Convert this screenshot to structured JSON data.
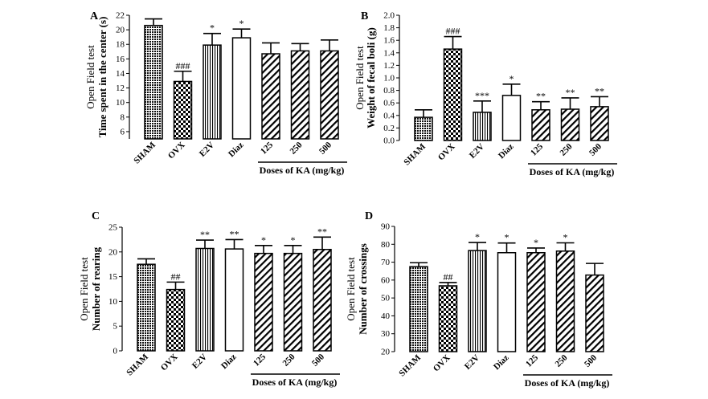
{
  "chart_data": [
    {
      "type": "bar",
      "panel_letter": "A",
      "ylabel_line1": "Open Field test",
      "ylabel_line2": "Time spent in the center (s)",
      "categories": [
        "SHAM",
        "OVX",
        "E2V",
        "Diaz",
        "125",
        "250",
        "500"
      ],
      "dose_label": "Doses of KA (mg/kg)",
      "values": [
        20.6,
        12.9,
        17.9,
        18.9,
        16.7,
        17.1,
        17.1
      ],
      "errors": [
        0.9,
        1.4,
        1.6,
        1.2,
        1.5,
        1.0,
        1.5
      ],
      "significance": [
        "",
        "###",
        "*",
        "*",
        "",
        "",
        ""
      ],
      "ylim": [
        5,
        22
      ],
      "yticks": [
        6,
        8,
        10,
        12,
        14,
        16,
        18,
        20,
        22
      ],
      "patterns": [
        "dense",
        "checker",
        "vlines",
        "open",
        "diag",
        "diag",
        "diag"
      ]
    },
    {
      "type": "bar",
      "panel_letter": "B",
      "ylabel_line1": "Open Field test",
      "ylabel_line2": "Weight of fecal boli (g)",
      "categories": [
        "SHAM",
        "OVX",
        "E2V",
        "Diaz",
        "125",
        "250",
        "500"
      ],
      "dose_label": "Doses of KA (mg/kg)",
      "values": [
        0.37,
        1.46,
        0.45,
        0.72,
        0.49,
        0.5,
        0.54
      ],
      "errors": [
        0.12,
        0.2,
        0.18,
        0.18,
        0.13,
        0.18,
        0.16
      ],
      "significance": [
        "",
        "###",
        "***",
        "*",
        "**",
        "**",
        "**"
      ],
      "ylim": [
        0,
        2.0
      ],
      "yticks": [
        0.0,
        0.2,
        0.4,
        0.6,
        0.8,
        1.0,
        1.2,
        1.4,
        1.6,
        1.8,
        2.0
      ],
      "patterns": [
        "dense",
        "checker",
        "vlines",
        "open",
        "diag",
        "diag",
        "diag"
      ]
    },
    {
      "type": "bar",
      "panel_letter": "C",
      "ylabel_line1": "Open Field test",
      "ylabel_line2": "Number of rearing",
      "categories": [
        "SHAM",
        "OVX",
        "E2V",
        "Diaz",
        "125",
        "250",
        "500"
      ],
      "dose_label": "Doses of KA (mg/kg)",
      "values": [
        17.5,
        12.4,
        20.7,
        20.6,
        19.7,
        19.7,
        20.5
      ],
      "errors": [
        1.1,
        1.5,
        1.7,
        1.9,
        1.6,
        1.6,
        2.5
      ],
      "significance": [
        "",
        "##",
        "**",
        "**",
        "*",
        "*",
        "**"
      ],
      "ylim": [
        0,
        25
      ],
      "yticks": [
        0,
        5,
        10,
        15,
        20,
        25
      ],
      "patterns": [
        "dense",
        "checker",
        "vlines",
        "open",
        "diag",
        "diag",
        "diag"
      ]
    },
    {
      "type": "bar",
      "panel_letter": "D",
      "ylabel_line1": "Open Field test",
      "ylabel_line2": "Number of crossings",
      "categories": [
        "SHAM",
        "OVX",
        "E2V",
        "Diaz",
        "125",
        "250",
        "500"
      ],
      "dose_label": "Doses of KA (mg/kg)",
      "values": [
        67.5,
        56.8,
        76.5,
        75.3,
        75.3,
        76.2,
        62.8
      ],
      "errors": [
        2.2,
        1.8,
        4.5,
        5.4,
        2.6,
        4.6,
        6.5
      ],
      "significance": [
        "",
        "##",
        "*",
        "*",
        "*",
        "*",
        ""
      ],
      "ylim": [
        20,
        90
      ],
      "yticks": [
        20,
        30,
        40,
        50,
        60,
        70,
        80,
        90
      ],
      "patterns": [
        "dense",
        "checker",
        "vlines",
        "open",
        "diag",
        "diag",
        "diag"
      ]
    }
  ]
}
